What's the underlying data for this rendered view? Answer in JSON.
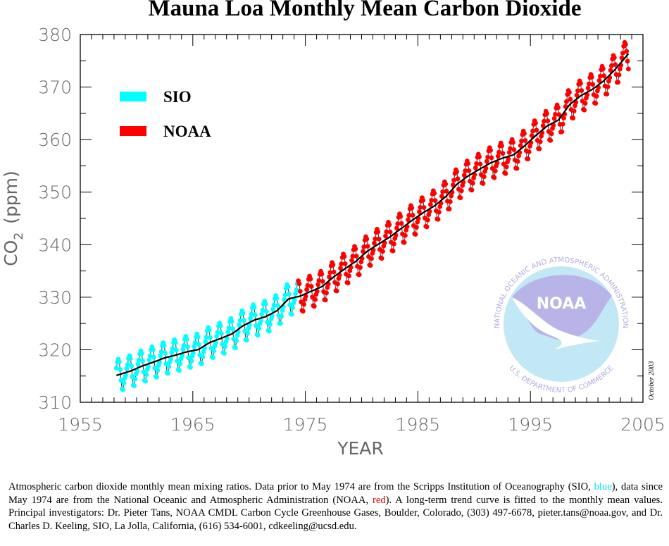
{
  "chart_data": {
    "type": "line",
    "title": "Mauna Loa Monthly Mean Carbon Dioxide",
    "xlabel": "YEAR",
    "ylabel": "CO",
    "ylabel_subscript": "2",
    "ylabel_unit": "(ppm)",
    "xlim": [
      1955,
      2005
    ],
    "ylim": [
      310,
      380
    ],
    "x_ticks": [
      "1955",
      "1965",
      "1975",
      "1985",
      "1995",
      "2005"
    ],
    "y_ticks": [
      "310",
      "320",
      "330",
      "340",
      "350",
      "360",
      "370",
      "380"
    ],
    "grid": false,
    "legend_position": "top-left",
    "series": [
      {
        "name": "SIO",
        "color": "#00ffff",
        "start": "1958-03",
        "end": "1974-04"
      },
      {
        "name": "NOAA",
        "color": "#ff0000",
        "start": "1974-05",
        "end": "2003-09"
      }
    ],
    "trend_label": "long-term trend curve",
    "annual_mean_ppm": {
      "1958": 315.3,
      "1959": 315.97,
      "1960": 316.91,
      "1961": 317.64,
      "1962": 318.45,
      "1963": 318.99,
      "1964": 319.62,
      "1965": 320.04,
      "1966": 321.38,
      "1967": 322.16,
      "1968": 323.04,
      "1969": 324.62,
      "1970": 325.68,
      "1971": 326.32,
      "1972": 327.45,
      "1973": 329.68,
      "1974": 330.18,
      "1975": 331.11,
      "1976": 332.04,
      "1977": 333.83,
      "1978": 335.4,
      "1979": 336.84,
      "1980": 338.75,
      "1981": 340.11,
      "1982": 341.45,
      "1983": 343.05,
      "1984": 344.65,
      "1985": 346.12,
      "1986": 347.42,
      "1987": 349.19,
      "1988": 351.57,
      "1989": 353.12,
      "1990": 354.39,
      "1991": 355.61,
      "1992": 356.45,
      "1993": 357.1,
      "1994": 358.83,
      "1995": 360.82,
      "1996": 362.61,
      "1997": 363.73,
      "1998": 366.7,
      "1999": 368.38,
      "2000": 369.55,
      "2001": 371.14,
      "2002": 373.28,
      "2003": 375.8
    },
    "seasonal_offset_ppm": [
      -0.5,
      0.7,
      1.4,
      2.5,
      3.0,
      2.4,
      0.9,
      -1.2,
      -2.9,
      -3.1,
      -1.9,
      -1.0
    ]
  },
  "logo": {
    "name": "NOAA",
    "ring_top": "NATIONAL OCEANIC AND ATMOSPHERIC ADMINISTRATION",
    "ring_bottom": "U.S. DEPARTMENT OF COMMERCE"
  },
  "stamp": "October 2003",
  "caption": {
    "part1": "Atmospheric carbon dioxide monthly mean mixing ratios.  Data prior to May 1974 are from the Scripps Institution of Oceanography (SIO, ",
    "blue": "blue",
    "part2": "), data since May 1974 are from the National Oceanic and Atmospheric Administration (NOAA, ",
    "red": "red",
    "part3": "). A long-term trend curve is fitted to the monthly mean values.  Principal investigators:  Dr. Pieter Tans, NOAA CMDL Carbon Cycle Greenhouse Gases, Boulder, Colorado, (303) 497-6678, pieter.tans@noaa.gov, and Dr. Charles D. Keeling, SIO, La Jolla, California, (616) 534-6001, cdkeeling@ucsd.edu."
  }
}
